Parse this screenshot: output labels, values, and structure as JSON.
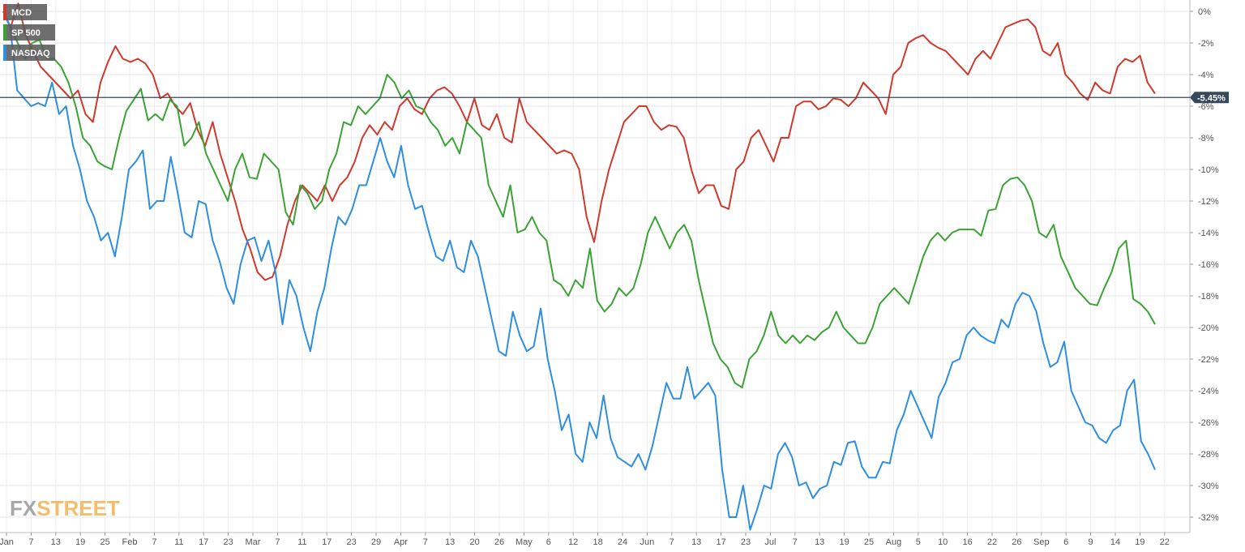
{
  "chart_data": {
    "type": "line",
    "legend": {
      "placement": "top-left"
    },
    "x_tick_labels": [
      "Jan",
      "7",
      "13",
      "19",
      "25",
      "Feb",
      "7",
      "11",
      "17",
      "23",
      "Mar",
      "7",
      "11",
      "17",
      "23",
      "29",
      "Apr",
      "7",
      "13",
      "20",
      "26",
      "May",
      "6",
      "12",
      "18",
      "24",
      "Jun",
      "7",
      "13",
      "17",
      "23",
      "Jul",
      "7",
      "13",
      "19",
      "25",
      "Aug",
      "5",
      "10",
      "16",
      "22",
      "26",
      "Sep",
      "6",
      "9",
      "14",
      "19",
      "22"
    ],
    "y_tick_labels": [
      "0%",
      "-2%",
      "-4%",
      "-6%",
      "-8%",
      "-10%",
      "-12%",
      "-14%",
      "-16%",
      "-18%",
      "-20%",
      "-22%",
      "-24%",
      "-26%",
      "-28%",
      "-30%",
      "-32%"
    ],
    "ylim": [
      -33,
      0.5
    ],
    "grid": true,
    "reference_line": {
      "value": -5.45,
      "label": "-5.45%",
      "color": "#34495e"
    },
    "series": [
      {
        "name": "MCD",
        "color": "#d0392b",
        "values": [
          0,
          -1,
          0.5,
          -1.5,
          -2.5,
          -3.5,
          -4,
          -4.5,
          -5,
          -5.5,
          -5,
          -6.5,
          -7,
          -4.5,
          -3.2,
          -2.2,
          -3,
          -3.2,
          -3,
          -3.3,
          -4,
          -5.5,
          -5.2,
          -6,
          -6.5,
          -5.8,
          -7.5,
          -8.5,
          -7,
          -9,
          -10.5,
          -12,
          -13.8,
          -15,
          -16.5,
          -17,
          -16.8,
          -15.5,
          -13.5,
          -12,
          -11,
          -11.5,
          -12,
          -11,
          -12,
          -11,
          -10.5,
          -9.5,
          -8,
          -7.2,
          -7.8,
          -7,
          -7.5,
          -6,
          -5.5,
          -6.2,
          -6.5,
          -5.5,
          -5,
          -4.8,
          -5.2,
          -6,
          -7,
          -5.5,
          -7.2,
          -7.5,
          -6.5,
          -8,
          -8.3,
          -5.5,
          -7,
          -7.5,
          -8,
          -8.5,
          -9,
          -8.8,
          -9,
          -10,
          -13,
          -14.6,
          -12,
          -10,
          -8.5,
          -7,
          -6.5,
          -6,
          -6,
          -7,
          -7.5,
          -7.2,
          -7.3,
          -8,
          -10,
          -11.5,
          -11,
          -11,
          -12.3,
          -12.5,
          -10,
          -9.5,
          -8,
          -7.5,
          -8.5,
          -9.5,
          -8,
          -8,
          -6,
          -5.7,
          -5.7,
          -6.2,
          -6,
          -5.5,
          -5.6,
          -6,
          -5.5,
          -4.5,
          -5,
          -5.5,
          -6.5,
          -4,
          -3.5,
          -2,
          -1.7,
          -1.5,
          -2,
          -2.3,
          -2.5,
          -3,
          -3.5,
          -4,
          -3,
          -2.5,
          -3,
          -2,
          -1,
          -0.8,
          -0.6,
          -0.5,
          -1,
          -2.5,
          -2.8,
          -2,
          -4,
          -4.5,
          -5.2,
          -5.6,
          -4.5,
          -5,
          -5.2,
          -3.5,
          -3,
          -3.2,
          -2.8,
          -4.5,
          -5.2
        ]
      },
      {
        "name": "SP 500",
        "color": "#3aa334",
        "values": [
          0,
          -1,
          -2,
          -3,
          -2,
          -1.8,
          -3,
          -3,
          -3.5,
          -4.5,
          -6,
          -8,
          -8.5,
          -9.5,
          -9.8,
          -10,
          -8,
          -6.3,
          -5.6,
          -4.9,
          -6.9,
          -6.5,
          -6.9,
          -5.6,
          -6,
          -8.5,
          -8,
          -7,
          -9,
          -10,
          -11,
          -12,
          -10,
          -9,
          -10.5,
          -10.6,
          -9,
          -9.5,
          -10,
          -12.7,
          -13.5,
          -11,
          -11.5,
          -12.5,
          -12,
          -10,
          -9,
          -7,
          -7.2,
          -6,
          -6.5,
          -6,
          -5.5,
          -4,
          -4.5,
          -5.5,
          -5,
          -6,
          -6.2,
          -7,
          -7.5,
          -8.5,
          -8,
          -9,
          -7,
          -7.5,
          -8,
          -11,
          -12,
          -13,
          -11,
          -14,
          -13.8,
          -13,
          -14,
          -14.5,
          -17,
          -17.3,
          -18,
          -17,
          -17.5,
          -15,
          -18.3,
          -19,
          -18.5,
          -17.5,
          -18,
          -17.5,
          -16,
          -14,
          -13,
          -14,
          -15,
          -14,
          -13.5,
          -14.5,
          -17,
          -19,
          -21,
          -22,
          -22.5,
          -23.5,
          -23.8,
          -22,
          -21.5,
          -20.5,
          -19,
          -20.5,
          -21,
          -20.5,
          -21,
          -20.5,
          -20.8,
          -20.3,
          -20,
          -19,
          -20,
          -20.5,
          -21,
          -21,
          -20,
          -18.5,
          -18,
          -17.5,
          -18,
          -18.5,
          -17,
          -15.5,
          -14.5,
          -14,
          -14.5,
          -14,
          -13.8,
          -13.8,
          -13.8,
          -14.2,
          -12.6,
          -12.5,
          -11,
          -10.6,
          -10.5,
          -11,
          -12,
          -14,
          -14.3,
          -13.5,
          -15.5,
          -16.5,
          -17.5,
          -18,
          -18.5,
          -18.6,
          -17.5,
          -16.5,
          -15,
          -14.5,
          -18.2,
          -18.5,
          -19,
          -19.8
        ]
      },
      {
        "name": "NASDAQ",
        "color": "#2e8ee0",
        "values": [
          0,
          -1,
          -5,
          -5.5,
          -6,
          -5.8,
          -6,
          -4.5,
          -6.5,
          -6,
          -8.5,
          -10,
          -12,
          -13,
          -14.5,
          -14,
          -15.5,
          -13,
          -10,
          -9.5,
          -8.8,
          -12.5,
          -12,
          -12,
          -9.2,
          -11.5,
          -14,
          -14.3,
          -12,
          -12.2,
          -14.5,
          -15.8,
          -17.5,
          -18.5,
          -16,
          -14.5,
          -14.3,
          -15.8,
          -14.5,
          -16.5,
          -19.8,
          -17,
          -18,
          -20,
          -21.5,
          -19,
          -17.5,
          -15,
          -13,
          -13.5,
          -12.5,
          -11,
          -11,
          -9.5,
          -8,
          -9.5,
          -10.5,
          -8.5,
          -11,
          -12.5,
          -12.3,
          -14,
          -15.5,
          -15.8,
          -14.5,
          -16.2,
          -16.5,
          -14.5,
          -15.5,
          -17.5,
          -19.5,
          -21.5,
          -21.8,
          -19,
          -20.5,
          -21.5,
          -21.2,
          -18.8,
          -22,
          -24,
          -26.5,
          -25.5,
          -28,
          -28.5,
          -26,
          -27,
          -24.3,
          -27,
          -28.2,
          -28.5,
          -28.8,
          -28,
          -29,
          -27.5,
          -25.5,
          -23.5,
          -24.5,
          -24.5,
          -22.5,
          -24.5,
          -24,
          -23.5,
          -24.3,
          -29,
          -32,
          -32,
          -30,
          -32.8,
          -31.5,
          -30,
          -30.2,
          -28,
          -27.3,
          -28.2,
          -30,
          -29.8,
          -30.8,
          -30.2,
          -30,
          -28.5,
          -28.7,
          -27.3,
          -27.2,
          -28.8,
          -29.5,
          -29.5,
          -28.5,
          -28.6,
          -26.5,
          -25.5,
          -24,
          -25,
          -26,
          -27,
          -24.4,
          -23.5,
          -22.2,
          -22,
          -20.5,
          -20,
          -20.5,
          -20.8,
          -21,
          -19.5,
          -20,
          -18.5,
          -17.8,
          -18,
          -19,
          -21,
          -22.5,
          -22.2,
          -20.9,
          -24,
          -25,
          -26,
          -26.2,
          -27,
          -27.3,
          -26.5,
          -26.2,
          -24,
          -23.3,
          -27.2,
          -28,
          -29
        ]
      }
    ]
  },
  "logo": {
    "part1": "FX",
    "part2": "STREET"
  }
}
